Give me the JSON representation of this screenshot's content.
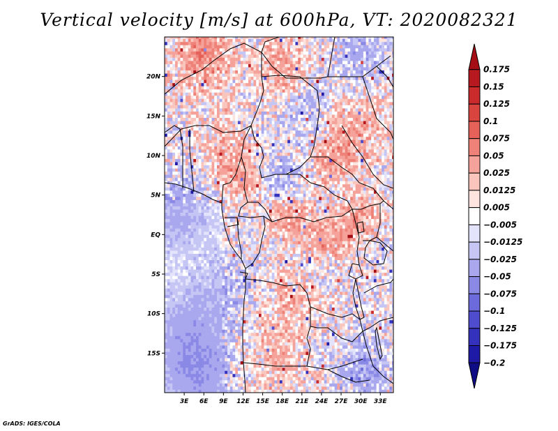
{
  "title": "Vertical velocity [m/s] at 600hPa, VT: 2020082321",
  "credit": "GrADS: IGES/COLA",
  "chart_data": {
    "type": "heatmap",
    "variable": "Vertical velocity",
    "units": "m/s",
    "level": "600hPa",
    "valid_time": "2020082321",
    "lon_range": [
      0,
      35
    ],
    "lat_range": [
      -20,
      25
    ],
    "x_ticks": [
      "3E",
      "6E",
      "9E",
      "12E",
      "15E",
      "18E",
      "21E",
      "24E",
      "27E",
      "30E",
      "33E"
    ],
    "x_tick_values": [
      3,
      6,
      9,
      12,
      15,
      18,
      21,
      24,
      27,
      30,
      33
    ],
    "y_ticks": [
      "20N",
      "15N",
      "10N",
      "5N",
      "EQ",
      "5S",
      "10S",
      "15S"
    ],
    "y_tick_values": [
      20,
      15,
      10,
      5,
      0,
      -5,
      -10,
      -15
    ],
    "colorbar": {
      "labels": [
        "0.175",
        "0.15",
        "0.125",
        "0.1",
        "0.075",
        "0.05",
        "0.025",
        "0.0125",
        "0.005",
        "-0.005",
        "-0.0125",
        "-0.025",
        "-0.05",
        "-0.075",
        "-0.1",
        "-0.125",
        "-0.175",
        "-0.2"
      ],
      "colors": [
        "#a50e14",
        "#b71920",
        "#c92a2c",
        "#d9443f",
        "#e5625a",
        "#ee8278",
        "#f5a39a",
        "#f9c5bd",
        "#fde4df",
        "#ffffff",
        "#e3e3fb",
        "#c6c6f5",
        "#a9a8ef",
        "#8b89e6",
        "#6d6adb",
        "#4f4ccd",
        "#3431bd",
        "#1e1aa5",
        "#0f0c86"
      ],
      "orientation": "vertical",
      "placement": "right"
    }
  }
}
